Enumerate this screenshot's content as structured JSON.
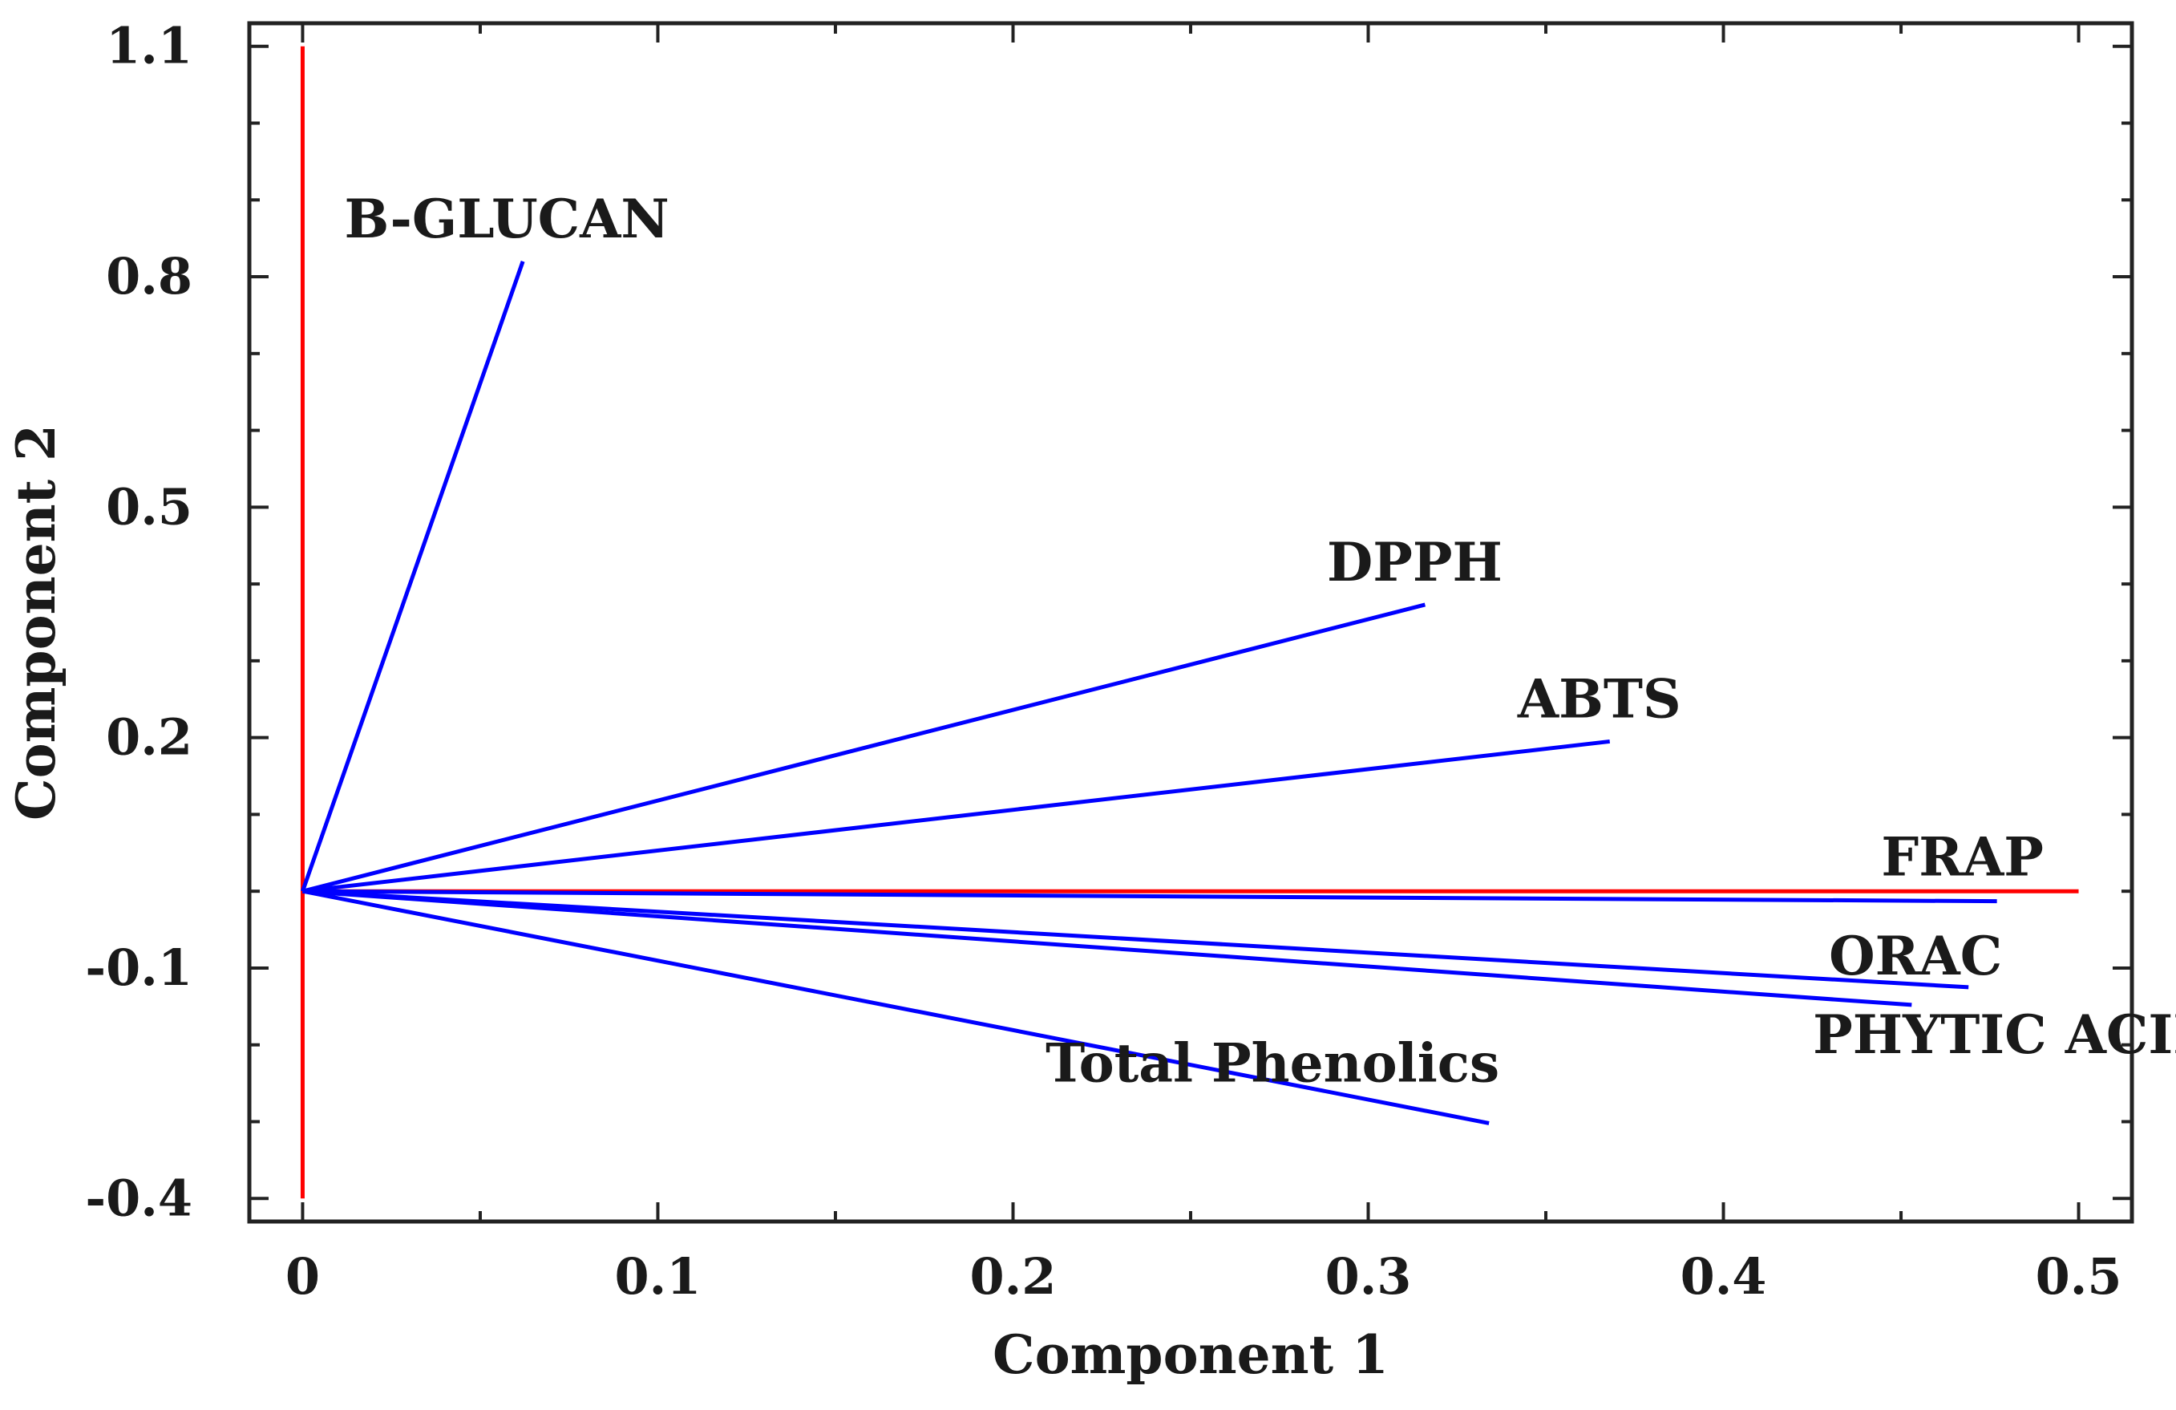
{
  "chart_data": {
    "type": "line",
    "subtype": "biplot-loadings",
    "title": "",
    "xlabel": "Component 1",
    "ylabel": "Component 2",
    "xlim": [
      -0.015,
      0.515
    ],
    "ylim": [
      -0.43,
      1.13
    ],
    "x_ticks": [
      0,
      0.1,
      0.2,
      0.3,
      0.4,
      0.5
    ],
    "x_tick_labels": [
      "0",
      "0.1",
      "0.2",
      "0.3",
      "0.4",
      "0.5"
    ],
    "y_ticks": [
      1.1,
      0.8,
      0.5,
      0.2,
      -0.1,
      -0.4
    ],
    "y_tick_labels": [
      "1.1",
      "0.8",
      "0.5",
      "0.2",
      "-0.1",
      "-0.4"
    ],
    "grid": false,
    "reference_lines": {
      "color": "#ff0000",
      "horizontal": {
        "y": 0,
        "x_from": 0,
        "x_to": 0.5
      },
      "vertical": {
        "x": 0,
        "y_from": -0.4,
        "y_to": 1.1
      }
    },
    "vector_color": "#0000ff",
    "vectors": [
      {
        "name": "B-GLUCAN",
        "x": 0.062,
        "y": 0.82
      },
      {
        "name": "DPPH",
        "x": 0.316,
        "y": 0.373
      },
      {
        "name": "ABTS",
        "x": 0.368,
        "y": 0.195
      },
      {
        "name": "FRAP",
        "x": 0.477,
        "y": -0.013
      },
      {
        "name": "ORAC",
        "x": 0.469,
        "y": -0.125
      },
      {
        "name": "PHYTIC ACID",
        "x": 0.453,
        "y": -0.148
      },
      {
        "name": "Total Phenolics",
        "x": 0.334,
        "y": -0.302
      }
    ]
  }
}
